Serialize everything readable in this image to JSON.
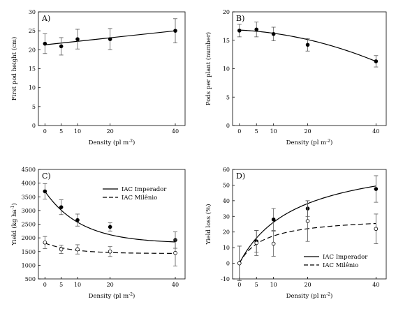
{
  "chart_data": [
    {
      "panel": "A)",
      "type": "scatter",
      "xlabel": "Density (pl m-2)",
      "ylabel": "First pod height (cm)",
      "xlim": [
        -2,
        43
      ],
      "ylim": [
        0,
        30
      ],
      "xticks": [
        0,
        5,
        10,
        20,
        40
      ],
      "yticks": [
        0,
        5,
        10,
        15,
        20,
        25,
        30
      ],
      "series": [
        {
          "marker": "filled",
          "line": "solid",
          "x": [
            0,
            5,
            10,
            20,
            40
          ],
          "y": [
            21.6,
            20.9,
            22.8,
            22.8,
            25.0
          ],
          "err": [
            2.6,
            2.3,
            2.6,
            2.8,
            3.2
          ],
          "fit": "linear",
          "fit_range": [
            0,
            40
          ],
          "fit_y": [
            21.3,
            25.0
          ]
        }
      ]
    },
    {
      "panel": "B)",
      "type": "scatter",
      "xlabel": "Density (pl m-2)",
      "ylabel": "Pods per plant (number)",
      "xlim": [
        -2,
        43
      ],
      "ylim": [
        0,
        20
      ],
      "xticks": [
        0,
        5,
        10,
        20,
        40
      ],
      "yticks": [
        0,
        5,
        10,
        15,
        20
      ],
      "series": [
        {
          "marker": "filled",
          "line": "solid",
          "x": [
            0,
            5,
            10,
            20,
            40
          ],
          "y": [
            16.7,
            16.9,
            16.1,
            14.2,
            11.3
          ],
          "err": [
            1.1,
            1.3,
            1.2,
            1.1,
            1.0
          ],
          "fit": "quadratic",
          "fit_coef": [
            16.8,
            -0.03,
            -0.0027
          ]
        }
      ]
    },
    {
      "panel": "C)",
      "type": "scatter",
      "xlabel": "Density (pl m-2)",
      "ylabel": "Yield (kg ha-1)",
      "xlim": [
        -2,
        43
      ],
      "ylim": [
        500,
        4500
      ],
      "xticks": [
        0,
        5,
        10,
        20,
        40
      ],
      "yticks": [
        500,
        1000,
        1500,
        2000,
        2500,
        3000,
        3500,
        4000,
        4500
      ],
      "legend": "upper-right",
      "series": [
        {
          "name": "IAC Imperador",
          "marker": "filled",
          "line": "solid",
          "x": [
            0,
            5,
            10,
            20,
            40
          ],
          "y": [
            3700,
            3120,
            2650,
            2400,
            1920
          ],
          "err": [
            280,
            270,
            220,
            150,
            300
          ],
          "fit": "exp",
          "fit_coef": [
            1800,
            1900,
            0.09
          ]
        },
        {
          "name": "IAC Milênio",
          "marker": "open",
          "line": "dashed",
          "x": [
            0,
            5,
            10,
            20,
            40
          ],
          "y": [
            1830,
            1580,
            1580,
            1500,
            1450
          ],
          "err": [
            220,
            150,
            170,
            180,
            480
          ],
          "fit": "exp",
          "fit_coef": [
            1430,
            380,
            0.12
          ]
        }
      ]
    },
    {
      "panel": "D)",
      "type": "scatter",
      "xlabel": "Density (pl m-2)",
      "ylabel": "Yield loss (%)",
      "xlim": [
        -2,
        43
      ],
      "ylim": [
        -10,
        60
      ],
      "xticks": [
        0,
        5,
        10,
        20,
        40
      ],
      "yticks": [
        -10,
        0,
        10,
        20,
        30,
        40,
        50,
        60
      ],
      "legend": "lower-right",
      "series": [
        {
          "name": "IAC Imperador",
          "marker": "filled",
          "line": "solid",
          "x": [
            0,
            5,
            10,
            20,
            40
          ],
          "y": [
            0,
            14,
            28,
            35,
            47.5
          ],
          "err": [
            11,
            7,
            7,
            5,
            8.5
          ],
          "fit": "hyperbolic",
          "fit_coef": [
            4.2,
            70
          ]
        },
        {
          "name": "IAC Milênio",
          "marker": "open",
          "line": "dashed",
          "x": [
            0,
            5,
            10,
            20,
            40
          ],
          "y": [
            0,
            13,
            12.5,
            27,
            22
          ],
          "err": [
            11,
            8,
            8,
            13,
            9.5
          ],
          "fit": "hyperbolic",
          "fit_coef": [
            4.2,
            30
          ]
        }
      ]
    }
  ]
}
